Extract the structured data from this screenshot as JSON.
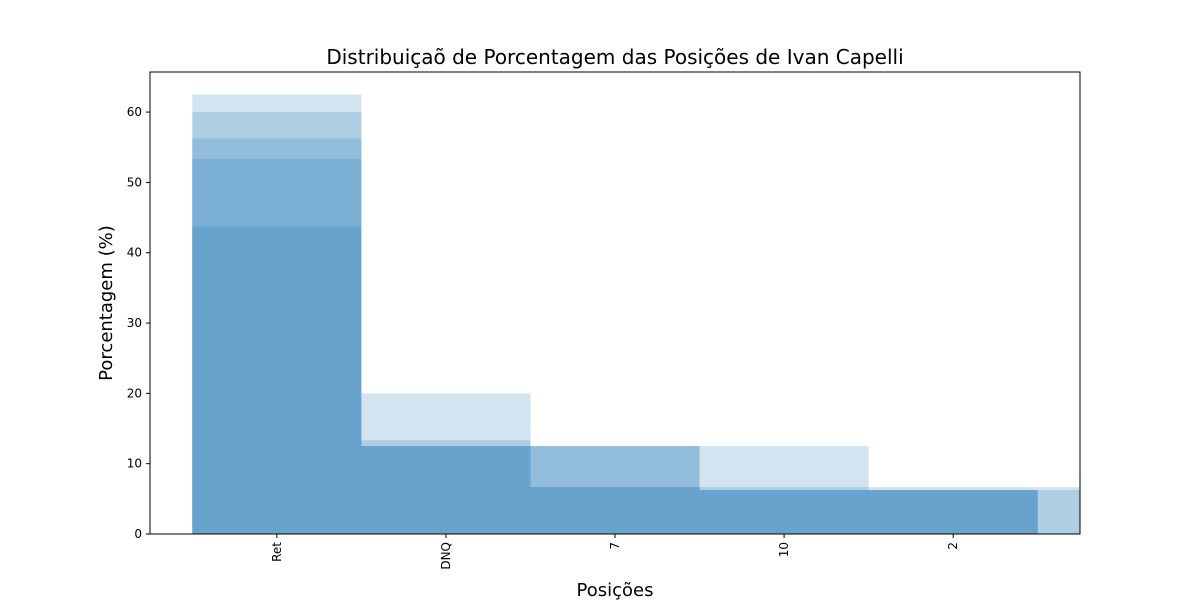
{
  "chart_data": {
    "type": "bar",
    "title": "Distribuiçaõ de Porcentagem das Posições de Ivan Capelli",
    "xlabel": "Posições",
    "ylabel": "Porcentagem (%)",
    "categories": [
      "Ret",
      "DNQ",
      "7",
      "10",
      "2",
      null
    ],
    "series": [
      {
        "color": "#1f77b4",
        "values": [
          62.5,
          20,
          12.5,
          12.5,
          6.67,
          6.67
        ]
      },
      {
        "color": "#1f77b4",
        "values": [
          60,
          13.33,
          12.5,
          6.67,
          6.25,
          6.25
        ]
      },
      {
        "color": "#1f77b4",
        "values": [
          56.25,
          12.5,
          12.5,
          6.25,
          6.25,
          null
        ]
      },
      {
        "color": "#1f77b4",
        "values": [
          53.33,
          12.5,
          6.67,
          6.25,
          6.25,
          null
        ]
      },
      {
        "color": "#1f77b4",
        "values": [
          43.75,
          12.5,
          6.67,
          6.25,
          6.25,
          null
        ]
      }
    ],
    "opacity": 0.2,
    "xlim": [
      -0.75,
      4.75
    ],
    "ylim": [
      0,
      65.7
    ],
    "yticks": [
      0,
      10,
      20,
      30,
      40,
      50,
      60
    ],
    "grid": false
  }
}
